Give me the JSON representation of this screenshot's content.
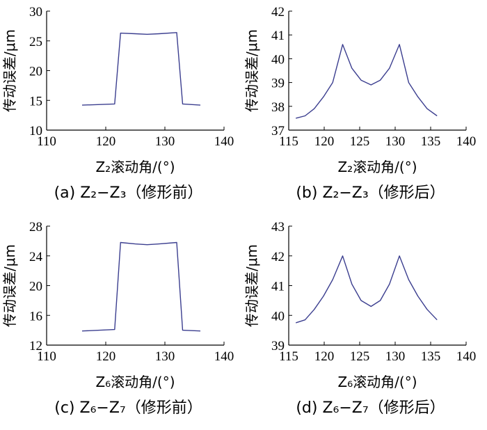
{
  "chart_data": [
    {
      "id": "a",
      "type": "line",
      "caption": "(a) Z₂−Z₃（修形前）",
      "xlabel": "Z₂滚动角/(°)",
      "ylabel": "传动误差/μm",
      "xlim": [
        110,
        140
      ],
      "ylim": [
        10,
        30
      ],
      "xticks": [
        110,
        120,
        130,
        140
      ],
      "yticks": [
        10,
        15,
        20,
        25,
        30
      ],
      "grid": false,
      "color": "#3b3e8f",
      "x": [
        116,
        121.5,
        122.5,
        125,
        127,
        129,
        132,
        133,
        136
      ],
      "y": [
        14.2,
        14.4,
        26.3,
        26.2,
        26.1,
        26.2,
        26.4,
        14.4,
        14.2
      ]
    },
    {
      "id": "b",
      "type": "line",
      "caption": "(b) Z₂−Z₃（修形后）",
      "xlabel": "Z₂滚动角/(°)",
      "ylabel": "传动误差/μm",
      "xlim": [
        115,
        140
      ],
      "ylim": [
        37,
        42
      ],
      "xticks": [
        115,
        120,
        125,
        130,
        135,
        140
      ],
      "yticks": [
        37,
        38,
        39,
        40,
        41,
        42
      ],
      "grid": false,
      "color": "#3b3e8f",
      "x": [
        116,
        117.3,
        118.6,
        119.9,
        121.2,
        122.6,
        123.9,
        125.2,
        126.6,
        127.9,
        129.2,
        130.6,
        131.9,
        133.2,
        134.5,
        135.9
      ],
      "y": [
        37.5,
        37.6,
        37.9,
        38.4,
        39.0,
        40.6,
        39.6,
        39.1,
        38.9,
        39.1,
        39.6,
        40.6,
        39.0,
        38.4,
        37.9,
        37.6
      ]
    },
    {
      "id": "c",
      "type": "line",
      "caption": "(c) Z₆−Z₇（修形前）",
      "xlabel": "Z₆滚动角/(°)",
      "ylabel": "传动误差/μm",
      "xlim": [
        110,
        140
      ],
      "ylim": [
        12,
        28
      ],
      "xticks": [
        110,
        120,
        130,
        140
      ],
      "yticks": [
        12,
        16,
        20,
        24,
        28
      ],
      "grid": false,
      "color": "#3b3e8f",
      "x": [
        116,
        121.5,
        122.5,
        125,
        127,
        129,
        132,
        133,
        136
      ],
      "y": [
        13.9,
        14.1,
        25.8,
        25.6,
        25.5,
        25.6,
        25.8,
        14.0,
        13.9
      ]
    },
    {
      "id": "d",
      "type": "line",
      "caption": "(d) Z₆−Z₇（修形后）",
      "xlabel": "Z₆滚动角/(°)",
      "ylabel": "传动误差/μm",
      "xlim": [
        115,
        140
      ],
      "ylim": [
        39,
        43
      ],
      "xticks": [
        115,
        120,
        125,
        130,
        135,
        140
      ],
      "yticks": [
        39,
        40,
        41,
        42,
        43
      ],
      "grid": false,
      "color": "#3b3e8f",
      "x": [
        116,
        117.3,
        118.6,
        119.9,
        121.2,
        122.6,
        123.9,
        125.2,
        126.6,
        127.9,
        129.2,
        130.6,
        131.9,
        133.2,
        134.5,
        135.9
      ],
      "y": [
        39.75,
        39.85,
        40.2,
        40.65,
        41.2,
        42.0,
        41.05,
        40.5,
        40.3,
        40.5,
        41.05,
        42.0,
        41.2,
        40.65,
        40.2,
        39.85
      ]
    }
  ]
}
